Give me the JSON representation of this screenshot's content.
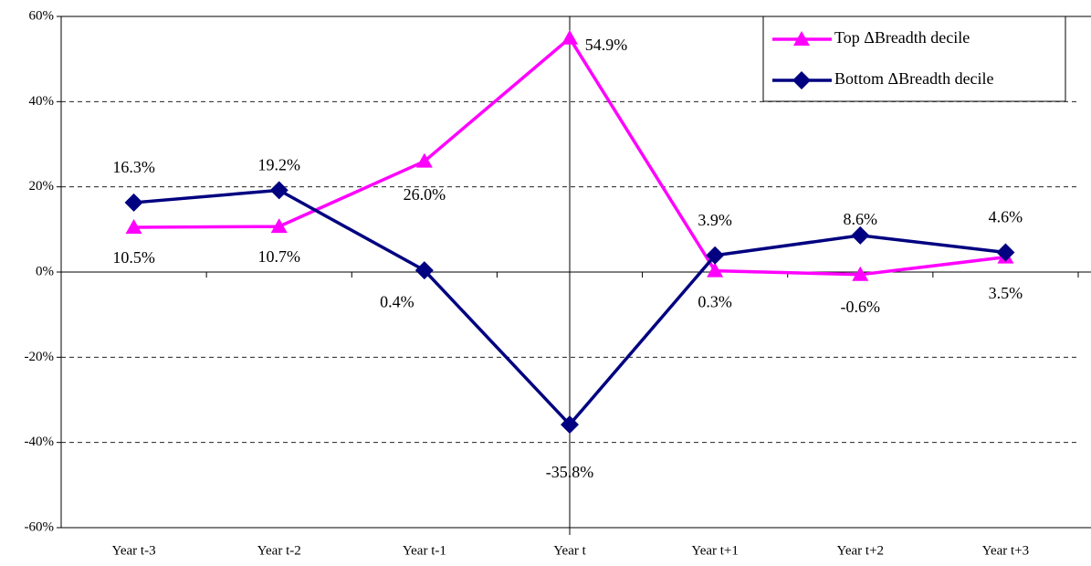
{
  "chart_data": {
    "type": "line",
    "categories": [
      "Year t-3",
      "Year t-2",
      "Year t-1",
      "Year t",
      "Year t+1",
      "Year t+2",
      "Year t+3"
    ],
    "series": [
      {
        "name": "Top ΔBreadth decile",
        "color": "#ff00ff",
        "marker": "triangle",
        "values": [
          10.5,
          10.7,
          26.0,
          54.9,
          0.3,
          -0.6,
          3.5
        ],
        "value_labels": [
          "10.5%",
          "10.7%",
          "26.0%",
          "54.9%",
          "0.3%",
          "-0.6%",
          "3.5%"
        ]
      },
      {
        "name": "Bottom ΔBreadth decile",
        "color": "#000080",
        "marker": "diamond",
        "values": [
          16.3,
          19.2,
          0.4,
          -35.8,
          3.9,
          8.6,
          4.6
        ],
        "value_labels": [
          "16.3%",
          "19.2%",
          "0.4%",
          "-35.8%",
          "3.9%",
          "8.6%",
          "4.6%"
        ]
      }
    ],
    "ylim": [
      -60,
      60
    ],
    "yticks": [
      {
        "value": -60,
        "label": "-60%"
      },
      {
        "value": -40,
        "label": "-40%"
      },
      {
        "value": -20,
        "label": "-20%"
      },
      {
        "value": 0,
        "label": "0%"
      },
      {
        "value": 20,
        "label": "20%"
      },
      {
        "value": 40,
        "label": "40%"
      },
      {
        "value": 60,
        "label": "60%"
      }
    ],
    "grid": true,
    "legend": "top-right"
  }
}
